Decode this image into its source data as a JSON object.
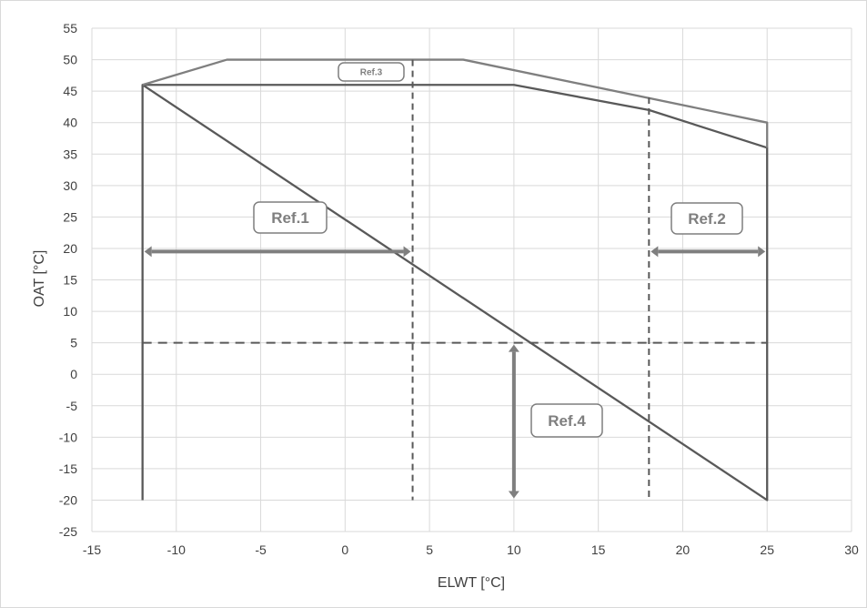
{
  "chart_data": {
    "type": "line",
    "title": "",
    "xlabel": "ELWT [°C]",
    "ylabel": "OAT [°C]",
    "xlim": [
      -15,
      30
    ],
    "ylim": [
      -25,
      55
    ],
    "x_ticks": [
      -15,
      -10,
      -5,
      0,
      5,
      10,
      15,
      20,
      25,
      30
    ],
    "y_ticks": [
      55,
      50,
      45,
      40,
      35,
      30,
      25,
      20,
      15,
      10,
      5,
      0,
      -5,
      -10,
      -15,
      -20,
      -25
    ],
    "grid": true,
    "legend": "none",
    "series": [
      {
        "style": "solid",
        "x": [
          -12,
          -12,
          25,
          25,
          18,
          10,
          -12
        ],
        "y": [
          -20,
          46,
          -20,
          36,
          42,
          46,
          46
        ]
      },
      {
        "style": "solid",
        "x": [
          -12,
          -7,
          7,
          25,
          25
        ],
        "y": [
          46,
          50,
          50,
          40,
          36
        ]
      },
      {
        "style": "dashed",
        "x": [
          4,
          4
        ],
        "y": [
          50,
          -20
        ]
      },
      {
        "style": "dashed",
        "x": [
          18,
          18
        ],
        "y": [
          44,
          -20
        ]
      },
      {
        "style": "dashed",
        "x": [
          -12,
          25
        ],
        "y": [
          5,
          5
        ]
      }
    ],
    "annotations": [
      {
        "text": "Ref.1",
        "arrow": "double-horizontal",
        "from": [
          -12,
          19.5
        ],
        "to": [
          4,
          19.5
        ]
      },
      {
        "text": "Ref.2",
        "arrow": "double-horizontal",
        "from": [
          18,
          19.5
        ],
        "to": [
          25,
          19.5
        ]
      },
      {
        "text": "Ref.3",
        "arrow": "none"
      },
      {
        "text": "Ref.4",
        "arrow": "double-vertical",
        "from": [
          10,
          5
        ],
        "to": [
          10,
          -20
        ]
      }
    ]
  },
  "colors": {
    "line": "#7f7f7f",
    "envelope": "#595959",
    "grid": "#d9d9d9",
    "text": "#404040"
  }
}
